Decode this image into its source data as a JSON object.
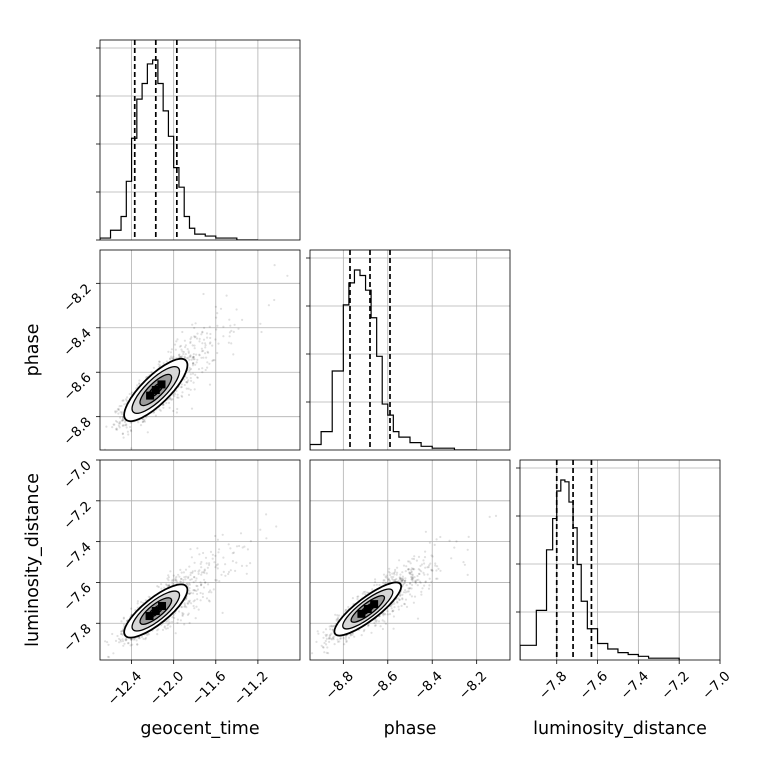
{
  "chart_data": {
    "type": "corner",
    "parameters": [
      {
        "name": "geocent_time",
        "label": "geocent_time",
        "range": [
          -12.7,
          -10.8
        ],
        "ticks": [
          -12.4,
          -12.0,
          -11.6,
          -11.2
        ],
        "tick_labels": [
          "−12.4",
          "−12.0",
          "−11.6",
          "−11.2"
        ],
        "quantiles": [
          -12.37,
          -12.17,
          -11.97
        ]
      },
      {
        "name": "phase",
        "label": "phase",
        "range": [
          -8.95,
          -8.05
        ],
        "ticks": [
          -8.8,
          -8.6,
          -8.4,
          -8.2
        ],
        "tick_labels": [
          "−8.8",
          "−8.6",
          "−8.4",
          "−8.2"
        ],
        "quantiles": [
          -8.77,
          -8.68,
          -8.59
        ]
      },
      {
        "name": "luminosity_distance",
        "label": "luminosity_distance",
        "range": [
          -7.98,
          -7.0
        ],
        "ticks": [
          -7.8,
          -7.6,
          -7.4,
          -7.2,
          -7.0
        ],
        "tick_labels": [
          "−7.8",
          "−7.6",
          "−7.4",
          "−7.2",
          "−7.0"
        ],
        "quantiles": [
          -7.8,
          -7.72,
          -7.63
        ]
      }
    ],
    "histograms": [
      {
        "param": "geocent_time",
        "bin_edges": [
          -12.7,
          -12.6,
          -12.5,
          -12.45,
          -12.4,
          -12.35,
          -12.3,
          -12.25,
          -12.2,
          -12.15,
          -12.1,
          -12.05,
          -12.0,
          -11.95,
          -11.9,
          -11.85,
          -11.8,
          -11.7,
          -11.6,
          -11.5,
          -11.4,
          -11.3,
          -11.2
        ],
        "counts": [
          1,
          5,
          12,
          30,
          52,
          72,
          80,
          90,
          92,
          80,
          66,
          53,
          37,
          27,
          12,
          6,
          3,
          2,
          1,
          1,
          0,
          0
        ]
      },
      {
        "param": "phase",
        "bin_edges": [
          -8.95,
          -8.9,
          -8.85,
          -8.8,
          -8.775,
          -8.75,
          -8.725,
          -8.7,
          -8.675,
          -8.65,
          -8.625,
          -8.6,
          -8.575,
          -8.55,
          -8.5,
          -8.45,
          -8.4,
          -8.35,
          -8.3,
          -8.25,
          -8.2
        ],
        "counts": [
          3,
          10,
          43,
          79,
          91,
          98,
          95,
          87,
          72,
          51,
          25,
          19,
          10,
          7,
          4,
          2,
          1,
          1,
          0,
          0
        ]
      },
      {
        "param": "luminosity_distance",
        "bin_edges": [
          -7.98,
          -7.9,
          -7.85,
          -7.82,
          -7.8,
          -7.78,
          -7.76,
          -7.74,
          -7.72,
          -7.7,
          -7.68,
          -7.65,
          -7.6,
          -7.55,
          -7.5,
          -7.45,
          -7.4,
          -7.35,
          -7.3,
          -7.2
        ],
        "counts": [
          8,
          27,
          60,
          77,
          92,
          98,
          97,
          86,
          72,
          52,
          32,
          17,
          9,
          6,
          4,
          3,
          2,
          1,
          1
        ]
      }
    ],
    "joint": [
      {
        "x": "geocent_time",
        "y": "phase",
        "center": [
          -12.17,
          -8.68
        ],
        "sigma": [
          0.15,
          0.07
        ],
        "correlation": 0.8
      },
      {
        "x": "geocent_time",
        "y": "luminosity_distance",
        "center": [
          -12.17,
          -7.74
        ],
        "sigma": [
          0.15,
          0.065
        ],
        "correlation": 0.8
      },
      {
        "x": "phase",
        "y": "luminosity_distance",
        "center": [
          -8.69,
          -7.73
        ],
        "sigma": [
          0.075,
          0.065
        ],
        "correlation": 0.85
      }
    ],
    "contour_levels": [
      0.5,
      1.0,
      1.5,
      2.0
    ],
    "grid": true,
    "quantile_line_style": "dashed"
  }
}
